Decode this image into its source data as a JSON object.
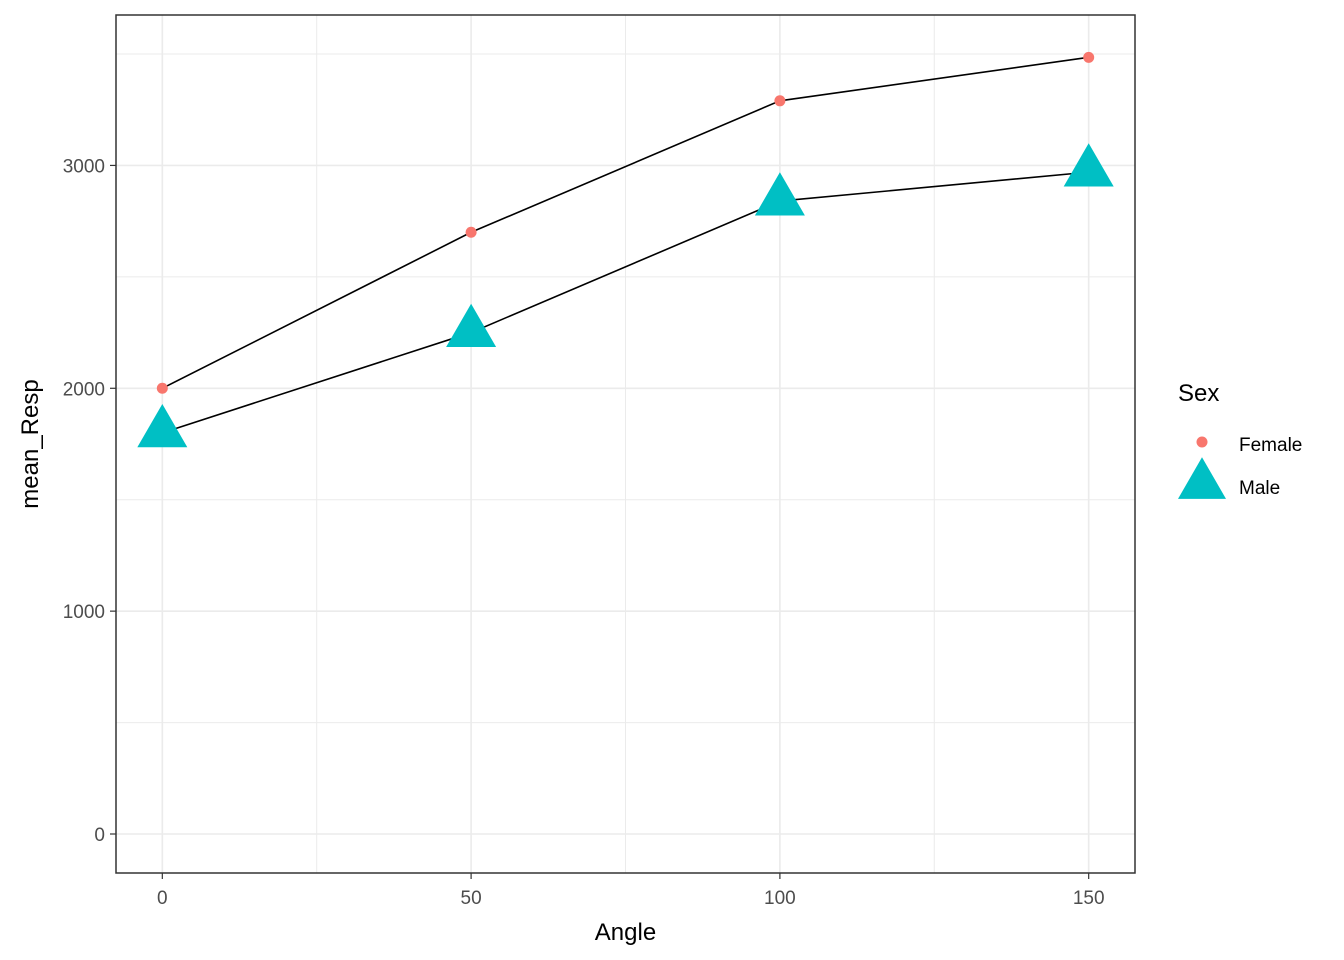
{
  "chart_data": {
    "type": "line",
    "xlabel": "Angle",
    "ylabel": "mean_Resp",
    "x": [
      0,
      50,
      100,
      150
    ],
    "xticks": [
      0,
      50,
      100,
      150
    ],
    "yticks": [
      0,
      1000,
      2000,
      3000
    ],
    "xlim": [
      -7.5,
      157.5
    ],
    "ylim": [
      -175,
      3675
    ],
    "grid": true,
    "legend_title": "Sex",
    "legend_position": "right",
    "series": [
      {
        "name": "Female",
        "marker": "circle",
        "color": "#F8766D",
        "values": [
          2000,
          2700,
          3290,
          3485
        ]
      },
      {
        "name": "Male",
        "marker": "triangle",
        "color": "#00BFC4",
        "values": [
          1800,
          2250,
          2840,
          2970
        ]
      }
    ],
    "line_color": "#000000"
  }
}
